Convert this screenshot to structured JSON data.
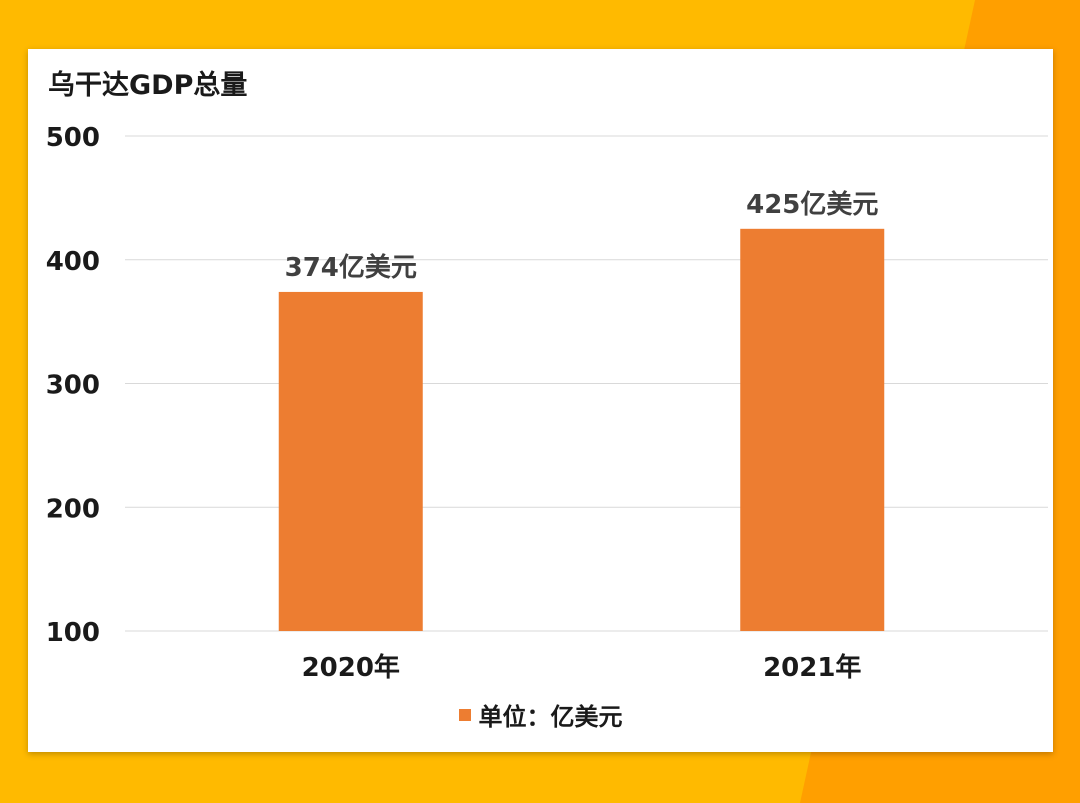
{
  "chart_data": {
    "type": "bar",
    "title": "乌干达GDP总量",
    "categories": [
      "2020年",
      "2021年"
    ],
    "series": [
      {
        "name": "单位：亿美元",
        "values": [
          374,
          425
        ],
        "data_labels": [
          "374亿美元",
          "425亿美元"
        ],
        "color": "#ED7D31"
      }
    ],
    "yticks": [
      "100",
      "200",
      "300",
      "400",
      "500"
    ],
    "ylim": [
      100,
      500
    ],
    "xlabel": "",
    "ylabel": "",
    "grid": true,
    "legend_position": "bottom"
  },
  "colors": {
    "background": "#FFBA00",
    "background_accent": "#FF9F00",
    "card": "#FFFFFF",
    "bar": "#ED7D31",
    "gridline": "#D9D9D9"
  }
}
